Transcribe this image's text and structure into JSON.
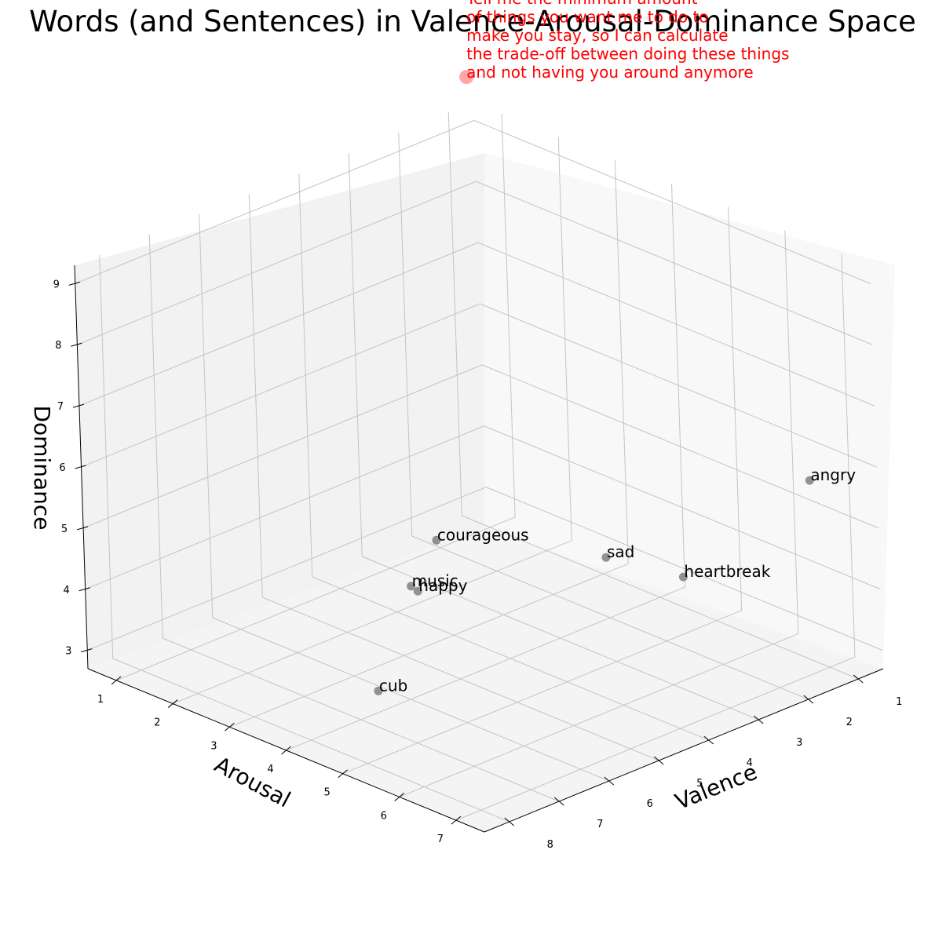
{
  "chart_data": {
    "type": "scatter",
    "projection": "3d",
    "title": "Words (and Sentences) in Valence-Arousal-Dominance Space",
    "xlabel": "Valence",
    "ylabel": "Arousal",
    "zlabel": "Dominance",
    "xlim": [
      0.5,
      8.5
    ],
    "ylim": [
      0.5,
      7.5
    ],
    "zlim": [
      2.7,
      9.3
    ],
    "xticks": [
      "1",
      "2",
      "3",
      "4",
      "5",
      "6",
      "7",
      "8"
    ],
    "yticks": [
      "1",
      "2",
      "3",
      "4",
      "5",
      "6",
      "7"
    ],
    "zticks": [
      "3",
      "4",
      "5",
      "6",
      "7",
      "8",
      "9"
    ],
    "grid": true,
    "points": [
      {
        "label": "angry",
        "x": 1.5,
        "y": 7.2,
        "z": 6.0
      },
      {
        "label": "sad",
        "x": 1.6,
        "y": 3.6,
        "z": 3.4
      },
      {
        "label": "heartbreak",
        "x": 1.3,
        "y": 4.7,
        "z": 3.4
      },
      {
        "label": "courageous",
        "x": 7.6,
        "y": 6.0,
        "z": 6.6
      },
      {
        "label": "happy",
        "x": 8.0,
        "y": 6.0,
        "z": 5.9
      },
      {
        "label": "music",
        "x": 7.8,
        "y": 5.7,
        "z": 5.8
      },
      {
        "label": "cub",
        "x": 7.3,
        "y": 4.6,
        "z": 3.5
      }
    ],
    "sentence_point": {
      "label": "Tell me the minimum amount\nof things you want me to do to\nmake you stay, so I can calculate\nthe trade-off between doing these things\nand not having you around anymore",
      "x": 0.4,
      "y": 0.3,
      "z": 9.6,
      "color": "#ff0000"
    },
    "point_color": "#808080"
  }
}
